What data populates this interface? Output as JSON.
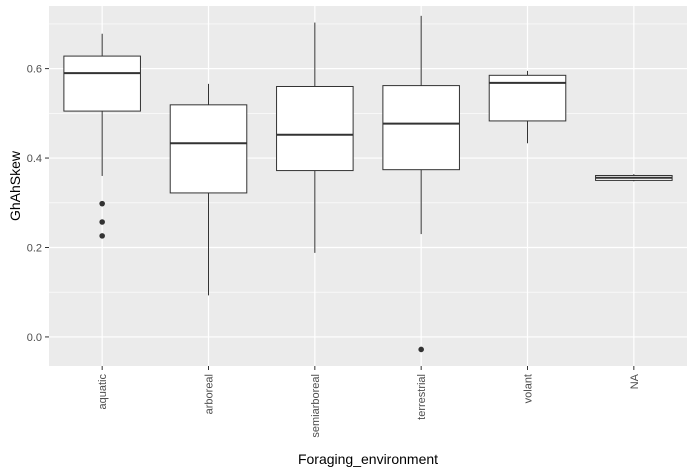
{
  "chart_data": {
    "type": "boxplot",
    "title": "",
    "xlabel": "Foraging_environment",
    "ylabel": "GhAhSkew",
    "ylim": [
      -0.065,
      0.74
    ],
    "yticks": [
      0.0,
      0.2,
      0.4,
      0.6
    ],
    "ytick_labels": [
      "0.0",
      "0.2",
      "0.4",
      "0.6"
    ],
    "categories": [
      "aquatic",
      "arboreal",
      "semiarboreal",
      "terrestrial",
      "volant",
      "NA"
    ],
    "boxes": [
      {
        "category": "aquatic",
        "whisker_low": 0.36,
        "q1": 0.505,
        "median": 0.59,
        "q3": 0.628,
        "whisker_high": 0.678,
        "outliers": [
          0.298,
          0.257,
          0.226
        ]
      },
      {
        "category": "arboreal",
        "whisker_low": 0.093,
        "q1": 0.322,
        "median": 0.433,
        "q3": 0.519,
        "whisker_high": 0.566,
        "outliers": []
      },
      {
        "category": "semiarboreal",
        "whisker_low": 0.188,
        "q1": 0.372,
        "median": 0.452,
        "q3": 0.56,
        "whisker_high": 0.703,
        "outliers": []
      },
      {
        "category": "terrestrial",
        "whisker_low": 0.23,
        "q1": 0.374,
        "median": 0.477,
        "q3": 0.562,
        "whisker_high": 0.718,
        "outliers": [
          -0.028
        ]
      },
      {
        "category": "volant",
        "whisker_low": 0.433,
        "q1": 0.483,
        "median": 0.568,
        "q3": 0.585,
        "whisker_high": 0.595,
        "outliers": []
      },
      {
        "category": "NA",
        "whisker_low": 0.348,
        "q1": 0.35,
        "median": 0.356,
        "q3": 0.361,
        "whisker_high": 0.364,
        "outliers": []
      }
    ],
    "grid": true,
    "legend": "none",
    "colors": {
      "panel": "#ebebeb",
      "grid_major": "#ffffff",
      "box_fill": "#ffffff",
      "box_line": "#333333",
      "outlier": "#333333"
    }
  }
}
